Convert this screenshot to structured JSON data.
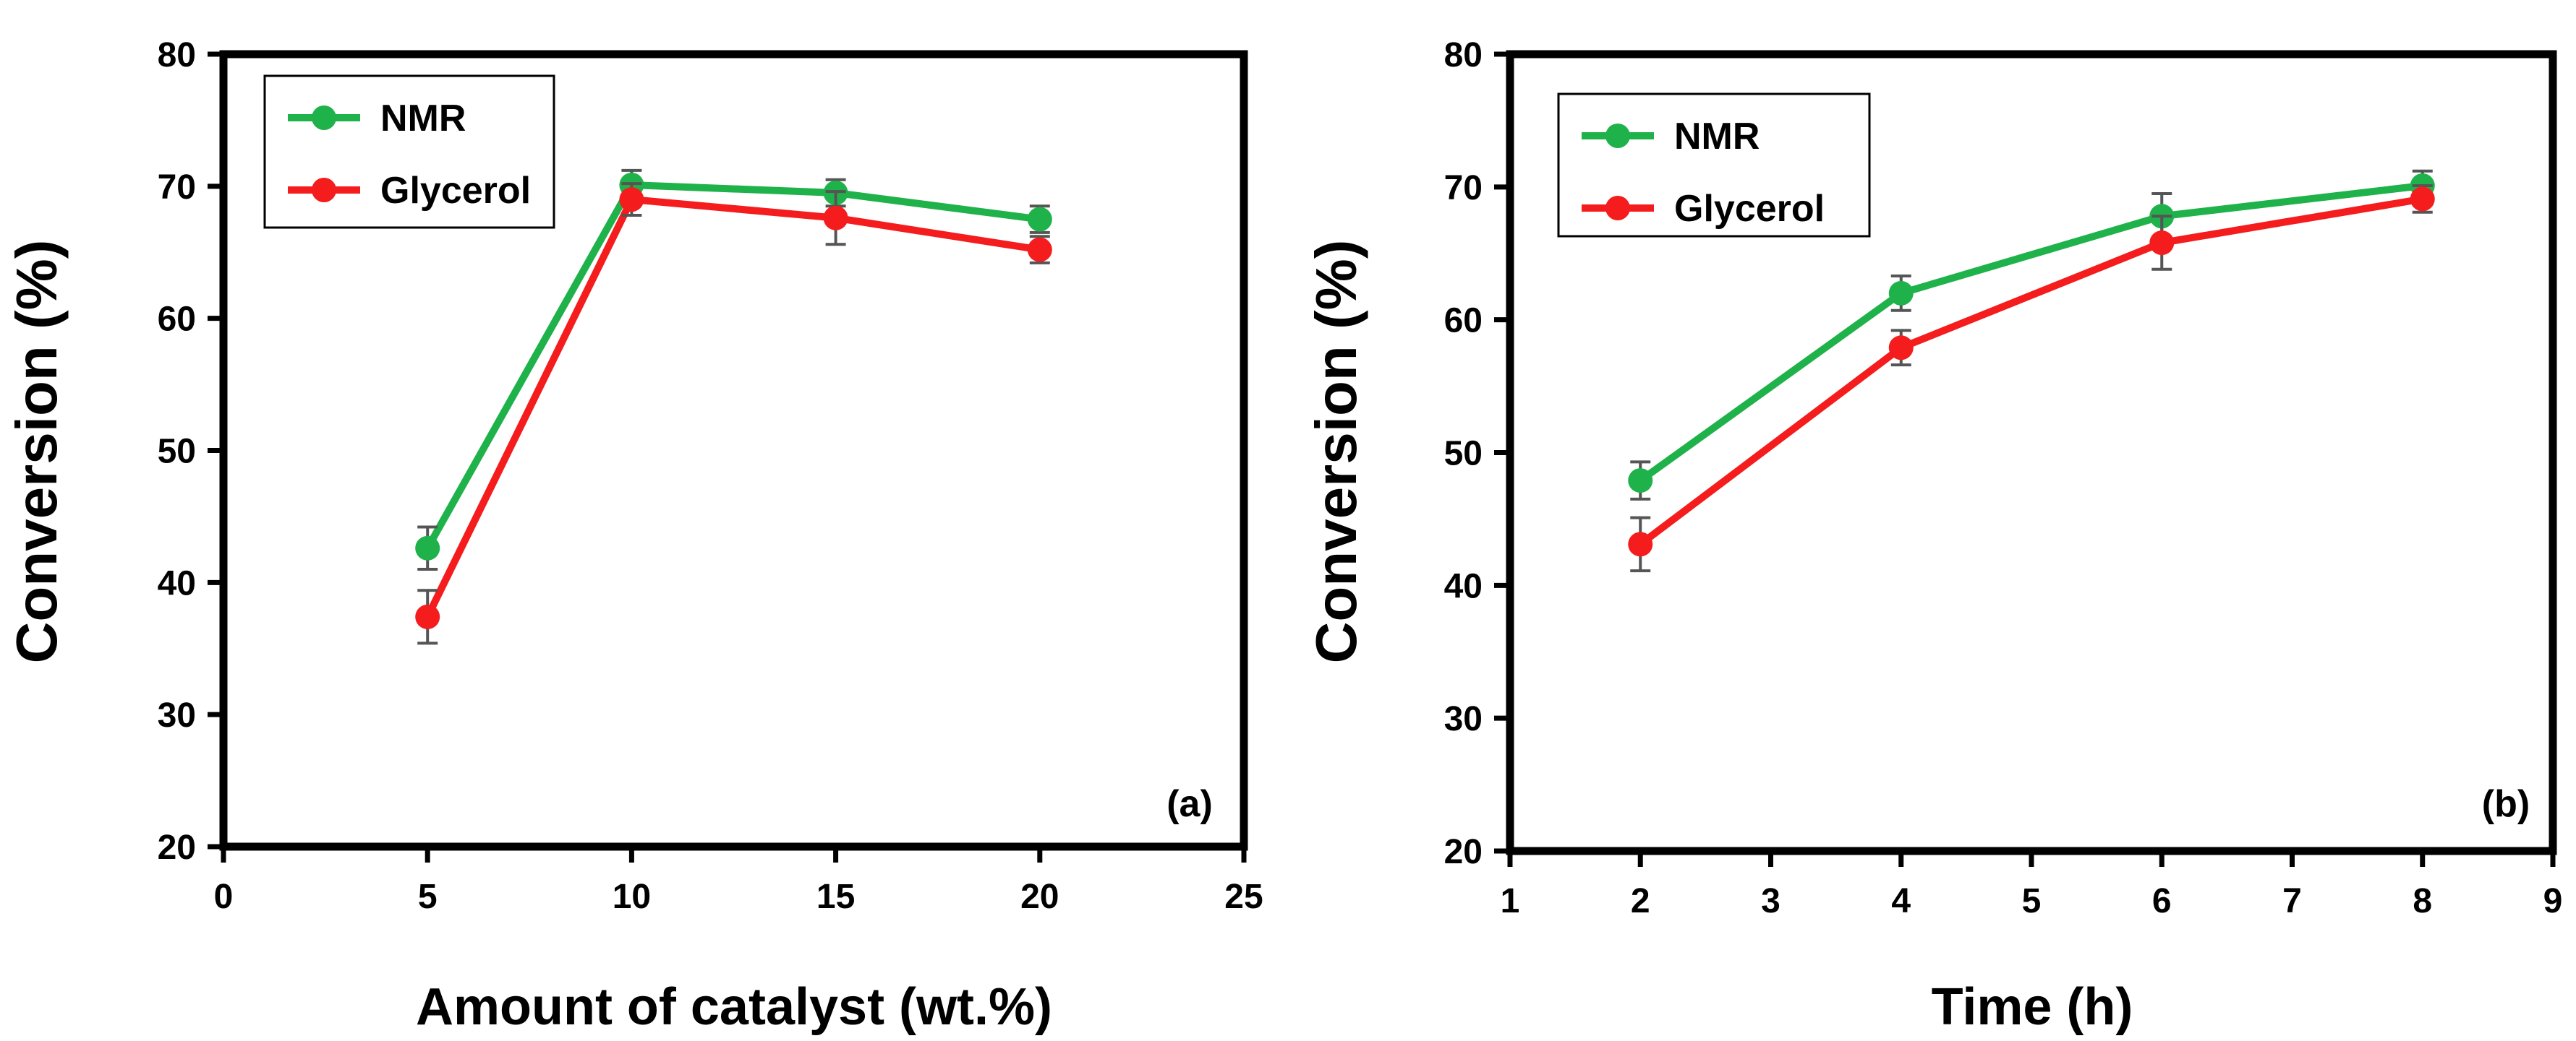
{
  "colors": {
    "nmr": "#1fb24a",
    "glycerol": "#f41c1c",
    "axis": "#000000",
    "errorbar": "#555555"
  },
  "chart_data": [
    {
      "type": "line",
      "panel_label": "(a)",
      "xlabel": "Amount of catalyst (wt.%)",
      "ylabel": "Conversion (%)",
      "xlim": [
        0,
        25
      ],
      "ylim": [
        20,
        80
      ],
      "xticks": [
        0,
        5,
        10,
        15,
        20,
        25
      ],
      "yticks": [
        20,
        30,
        40,
        50,
        60,
        70,
        80
      ],
      "xtick_labels": [
        "0",
        "5",
        "10",
        "15",
        "20",
        "25"
      ],
      "ytick_labels": [
        "20",
        "30",
        "40",
        "50",
        "60",
        "70",
        "80"
      ],
      "legend_position": "top-left",
      "series": [
        {
          "name": "NMR",
          "color_key": "nmr",
          "x": [
            5,
            10,
            15,
            20
          ],
          "values": [
            42.6,
            70.1,
            69.5,
            67.5
          ],
          "errors": [
            1.6,
            1.1,
            1.0,
            1.0
          ]
        },
        {
          "name": "Glycerol",
          "color_key": "glycerol",
          "x": [
            5,
            10,
            15,
            20
          ],
          "values": [
            37.4,
            69.0,
            67.6,
            65.2
          ],
          "errors": [
            2.0,
            1.2,
            2.0,
            1.0
          ]
        }
      ]
    },
    {
      "type": "line",
      "panel_label": "(b)",
      "xlabel": "Time (h)",
      "ylabel": "Conversion (%)",
      "xlim": [
        1,
        9
      ],
      "ylim": [
        20,
        80
      ],
      "xticks": [
        1,
        2,
        3,
        4,
        5,
        6,
        7,
        8,
        9
      ],
      "yticks": [
        20,
        30,
        40,
        50,
        60,
        70,
        80
      ],
      "xtick_labels": [
        "1",
        "2",
        "3",
        "4",
        "5",
        "6",
        "7",
        "8",
        "9"
      ],
      "ytick_labels": [
        "20",
        "30",
        "40",
        "50",
        "60",
        "70",
        "80"
      ],
      "legend_position": "top-left",
      "series": [
        {
          "name": "NMR",
          "color_key": "nmr",
          "x": [
            2,
            4,
            6,
            8
          ],
          "values": [
            47.9,
            62.0,
            67.8,
            70.1
          ],
          "errors": [
            1.4,
            1.3,
            1.7,
            1.1
          ]
        },
        {
          "name": "Glycerol",
          "color_key": "glycerol",
          "x": [
            2,
            4,
            6,
            8
          ],
          "values": [
            43.1,
            57.9,
            65.8,
            69.1
          ],
          "errors": [
            2.0,
            1.3,
            2.0,
            1.0
          ]
        }
      ]
    }
  ]
}
